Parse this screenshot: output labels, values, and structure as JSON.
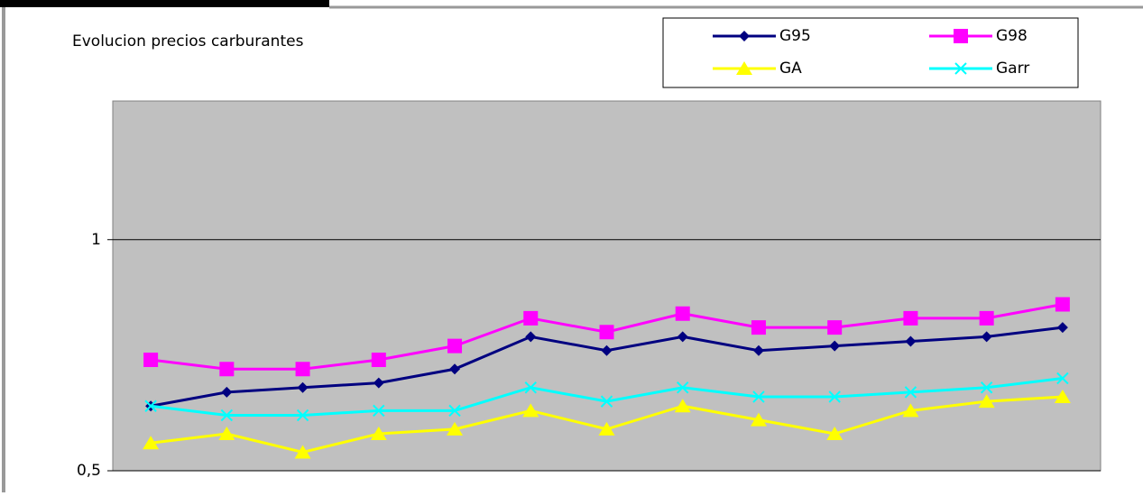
{
  "chart_data": {
    "type": "line",
    "title": "Evolucion precios carburantes",
    "categories": [
      null,
      null,
      null,
      null,
      null,
      null,
      null,
      null,
      null,
      null,
      null,
      null,
      null
    ],
    "series": [
      {
        "name": "G95",
        "color": "#000080",
        "marker": "diamond",
        "values": [
          0.64,
          0.67,
          0.68,
          0.69,
          0.72,
          0.79,
          0.76,
          0.79,
          0.76,
          0.77,
          0.78,
          0.79,
          0.81
        ]
      },
      {
        "name": "G98",
        "color": "#ff00ff",
        "marker": "square",
        "values": [
          0.74,
          0.72,
          0.72,
          0.74,
          0.77,
          0.83,
          0.8,
          0.84,
          0.81,
          0.81,
          0.83,
          0.83,
          0.86
        ]
      },
      {
        "name": "GA",
        "color": "#ffff00",
        "marker": "triangle",
        "values": [
          0.56,
          0.58,
          0.54,
          0.58,
          0.59,
          0.63,
          0.59,
          0.64,
          0.61,
          0.58,
          0.63,
          0.65,
          0.66
        ]
      },
      {
        "name": "Garr",
        "color": "#00ffff",
        "marker": "x",
        "values": [
          0.64,
          0.62,
          0.62,
          0.63,
          0.63,
          0.68,
          0.65,
          0.68,
          0.66,
          0.66,
          0.67,
          0.68,
          0.7
        ]
      }
    ],
    "ylim": [
      0.5,
      1.3
    ],
    "yticks": [
      {
        "value": 0.5,
        "label": "0,5"
      },
      1
    ],
    "grid": true
  }
}
